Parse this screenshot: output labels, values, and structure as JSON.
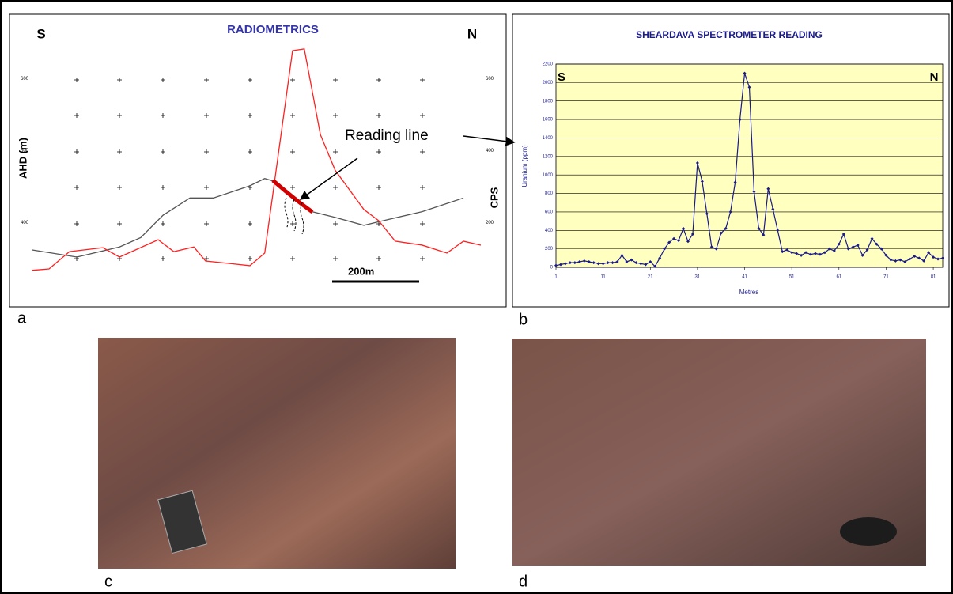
{
  "chart_data": [
    {
      "type": "line",
      "title": "RADIOMETRICS",
      "ylabel": "AHD (m)",
      "y2label": "CPS",
      "side_labels": [
        "S",
        "N"
      ],
      "annotation": "Reading line",
      "scale_label": "200m",
      "xlim": [
        0,
        1033
      ],
      "ylim": [
        330,
        665
      ],
      "yticks": [
        400,
        500,
        600
      ],
      "y2lim": [
        60,
        730
      ],
      "y2ticks": [
        200,
        400,
        600
      ],
      "series": [
        {
          "color": "#555555",
          "x": [
            0,
            104,
            202,
            251,
            302,
            364,
            418,
            502,
            536,
            564,
            600,
            645,
            698,
            764,
            798,
            898,
            993
          ],
          "values": [
            362,
            352,
            366,
            379,
            410,
            434,
            434,
            451,
            461,
            456,
            438,
            415,
            407,
            396,
            401,
            415,
            434
          ]
        },
        {
          "color": "#ff2020",
          "axis": "y2",
          "x": [
            0,
            40,
            87,
            164,
            202,
            291,
            327,
            373,
            400,
            455,
            502,
            536,
            600,
            627,
            664,
            698,
            764,
            798,
            836,
            898,
            955,
            993,
            1033
          ],
          "values": [
            67,
            71,
            119,
            130,
            104,
            152,
            119,
            132,
            93,
            86,
            80,
            115,
            677,
            682,
            444,
            345,
            236,
            205,
            148,
            137,
            115,
            148,
            137
          ]
        }
      ]
    },
    {
      "type": "line",
      "title": "SHEARDAVA SPECTROMETER READING",
      "xlabel": "Metres",
      "ylabel": "Uranium (ppm)",
      "side_labels": [
        "S",
        "N"
      ],
      "grid": true,
      "background": "#ffffc0",
      "xlim": [
        1,
        83
      ],
      "xticks": [
        1,
        11,
        21,
        31,
        41,
        51,
        61,
        71,
        81
      ],
      "ylim": [
        0,
        2200
      ],
      "yticks": [
        0,
        200,
        400,
        600,
        800,
        1000,
        1200,
        1400,
        1600,
        1800,
        2000,
        2200
      ],
      "series": [
        {
          "color": "#1a1a8c",
          "x": [
            1,
            2,
            3,
            4,
            5,
            6,
            7,
            8,
            9,
            10,
            11,
            12,
            13,
            14,
            15,
            16,
            17,
            18,
            19,
            20,
            21,
            22,
            23,
            24,
            25,
            26,
            27,
            28,
            29,
            30,
            31,
            32,
            33,
            34,
            35,
            36,
            37,
            38,
            39,
            40,
            41,
            42,
            43,
            44,
            45,
            46,
            47,
            48,
            49,
            50,
            51,
            52,
            53,
            54,
            55,
            56,
            57,
            58,
            59,
            60,
            61,
            62,
            63,
            64,
            65,
            66,
            67,
            68,
            69,
            70,
            71,
            72,
            73,
            74,
            75,
            76,
            77,
            78,
            79,
            80,
            81,
            82,
            83
          ],
          "values": [
            20,
            30,
            40,
            50,
            50,
            60,
            70,
            60,
            50,
            40,
            40,
            50,
            50,
            60,
            130,
            60,
            80,
            50,
            40,
            30,
            60,
            10,
            100,
            200,
            270,
            310,
            290,
            420,
            280,
            360,
            1130,
            930,
            580,
            220,
            200,
            370,
            420,
            600,
            920,
            1600,
            2100,
            1950,
            820,
            420,
            350,
            850,
            630,
            400,
            170,
            190,
            160,
            150,
            130,
            160,
            140,
            150,
            140,
            160,
            200,
            180,
            250,
            360,
            200,
            220,
            240,
            130,
            190,
            310,
            250,
            200,
            130,
            80,
            70,
            80,
            60,
            90,
            120,
            100,
            70,
            160,
            110,
            90,
            100
          ]
        }
      ]
    }
  ],
  "panel_labels": [
    "a",
    "b",
    "c",
    "d"
  ]
}
